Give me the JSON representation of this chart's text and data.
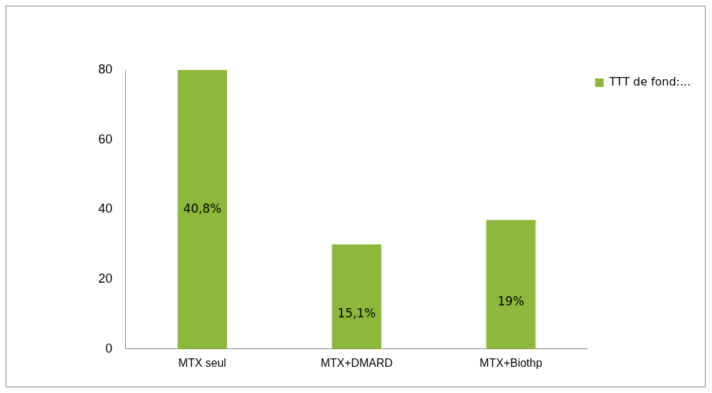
{
  "chart_data": {
    "type": "bar",
    "categories": [
      "MTX seul",
      "MTX+DMARD",
      "MTX+Biothp"
    ],
    "series": [
      {
        "name": "TTT de fond:...",
        "color": "#8cb83c",
        "values": [
          80,
          30,
          37
        ]
      }
    ],
    "annotations": [
      "40,8%",
      "15,1%",
      "19%"
    ],
    "ylim": [
      0,
      80
    ],
    "yticks": [
      0,
      20,
      40,
      60,
      80
    ],
    "grid": false,
    "legend": "top right"
  }
}
